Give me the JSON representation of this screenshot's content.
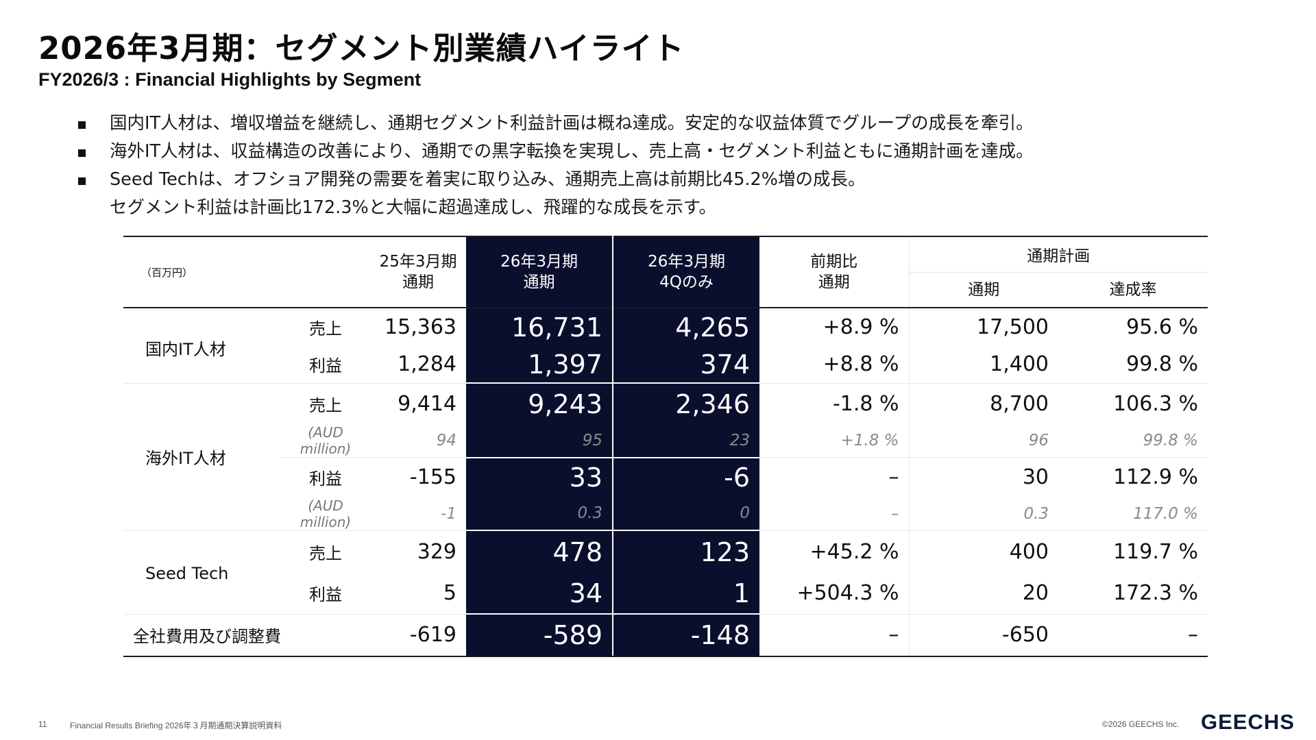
{
  "title": "2026年3月期：セグメント別業績ハイライト",
  "subtitle": "FY2026/3 : Financial Highlights by Segment",
  "bullets": [
    "国内IT人材は、増収増益を継続し、通期セグメント利益計画は概ね達成。安定的な収益体質でグループの成長を牽引。",
    "海外IT人材は、収益構造の改善により、通期での黒字転換を実現し、売上高・セグメント利益ともに通期計画を達成。",
    "Seed Techは、オフショア開発の需要を着実に取り込み、通期売上高は前期比45.2%増の成長。",
    "セグメント利益は計画比172.3%と大幅に超過達成し、飛躍的な成長を示す。"
  ],
  "table": {
    "unit": "（百万円）",
    "headers": {
      "prev_line1": "25年3月期",
      "prev_line2": "通期",
      "cur_line1": "26年3月期",
      "cur_line2": "通期",
      "q4_line1": "26年3月期",
      "q4_line2": "4Qのみ",
      "yoy_line1": "前期比",
      "yoy_line2": "通期",
      "plan": "通期計画",
      "plan_full": "通期",
      "plan_rate": "達成率"
    },
    "labels": {
      "sales": "売上",
      "profit": "利益",
      "aud": "(AUD million)"
    },
    "domestic": {
      "name": "国内IT人材",
      "sales": {
        "prev": "15,363",
        "cur": "16,731",
        "q4": "4,265",
        "yoy": "+8.9 %",
        "plan": "17,500",
        "rate": "95.6 %"
      },
      "profit": {
        "prev": "1,284",
        "cur": "1,397",
        "q4": "374",
        "yoy": "+8.8 %",
        "plan": "1,400",
        "rate": "99.8 %"
      }
    },
    "overseas": {
      "name": "海外IT人材",
      "sales": {
        "prev": "9,414",
        "cur": "9,243",
        "q4": "2,346",
        "yoy": "-1.8 %",
        "plan": "8,700",
        "rate": "106.3 %"
      },
      "sales_aud": {
        "prev": "94",
        "cur": "95",
        "q4": "23",
        "yoy": "+1.8 %",
        "plan": "96",
        "rate": "99.8 %"
      },
      "profit": {
        "prev": "-155",
        "cur": "33",
        "q4": "-6",
        "yoy": "–",
        "plan": "30",
        "rate": "112.9 %"
      },
      "profit_aud": {
        "prev": "-1",
        "cur": "0.3",
        "q4": "0",
        "yoy": "–",
        "plan": "0.3",
        "rate": "117.0 %"
      }
    },
    "seedtech": {
      "name": "Seed Tech",
      "sales": {
        "prev": "329",
        "cur": "478",
        "q4": "123",
        "yoy": "+45.2 %",
        "plan": "400",
        "rate": "119.7 %"
      },
      "profit": {
        "prev": "5",
        "cur": "34",
        "q4": "1",
        "yoy": "+504.3 %",
        "plan": "20",
        "rate": "172.3 %"
      }
    },
    "corporate": {
      "name": "全社費用及び調整費",
      "prev": "-619",
      "cur": "-589",
      "q4": "-148",
      "yoy": "–",
      "plan": "-650",
      "rate": "–"
    }
  },
  "footer": {
    "page": "11",
    "text": "Financial Results Briefing 2026年３月期通期決算説明資料",
    "copyright": "©2026 GEECHS Inc.",
    "logo": "GEECHS"
  },
  "colors": {
    "highlight_bg": "#0a0f2e",
    "logo": "#0a1a3c"
  }
}
